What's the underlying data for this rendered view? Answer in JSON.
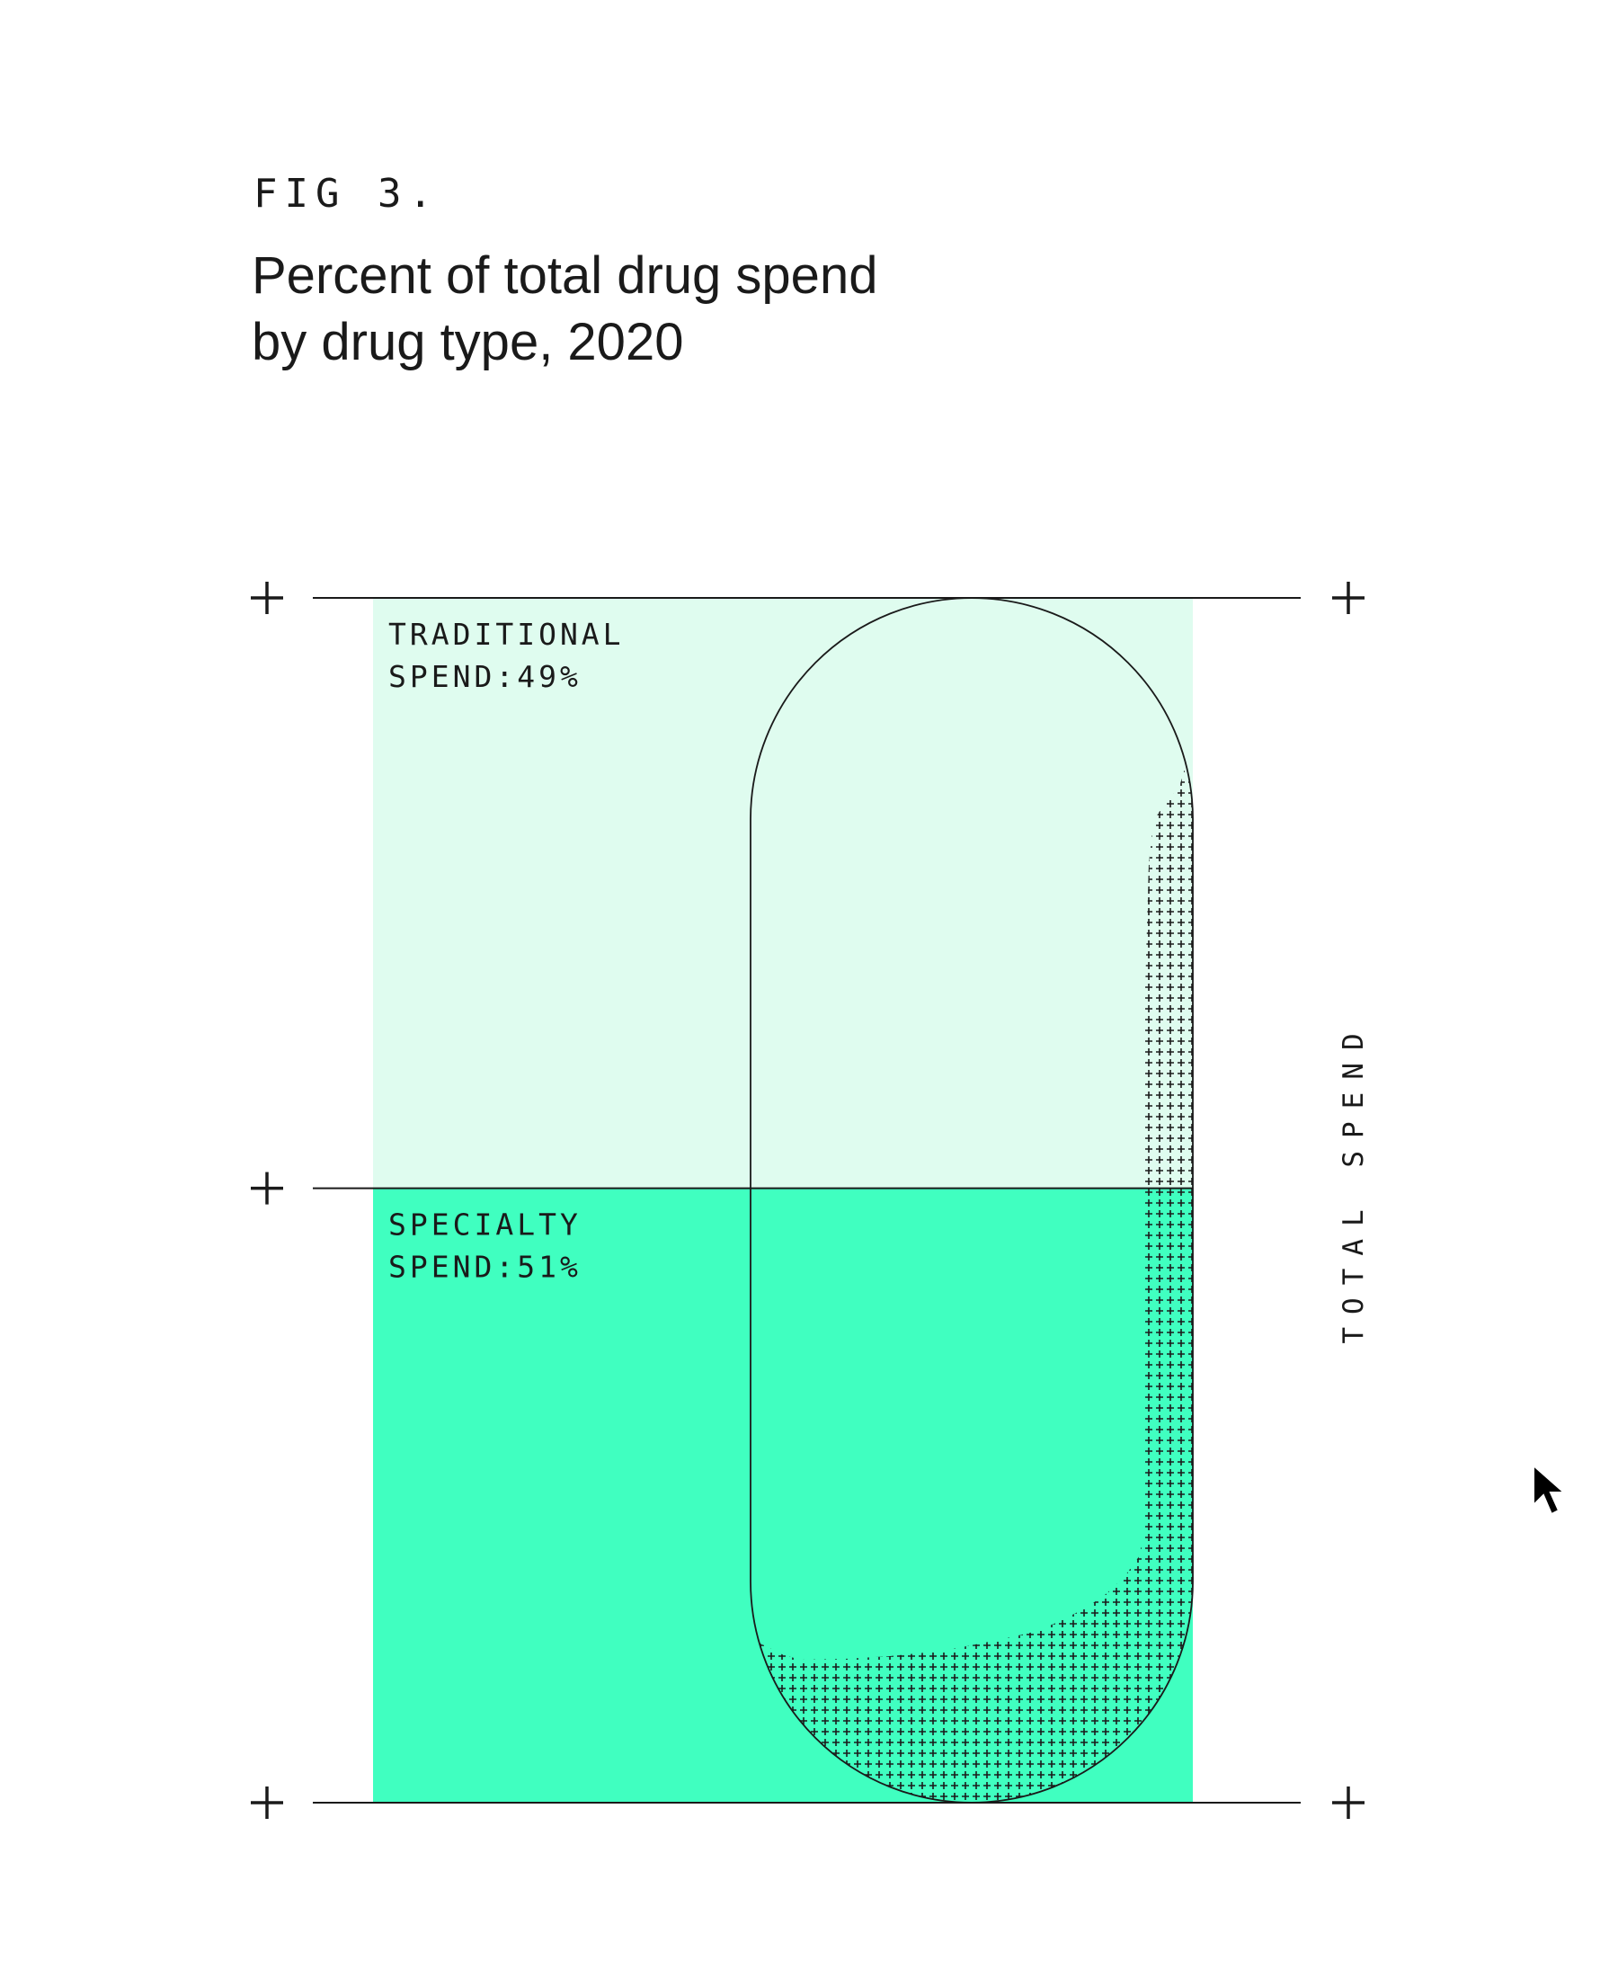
{
  "figure": {
    "label": "FIG 3.",
    "title_lines": [
      "Percent of total drug spend",
      "by drug type, 2020"
    ]
  },
  "chart_data": {
    "type": "bar",
    "stacked": true,
    "categories": [
      "Traditional",
      "Specialty"
    ],
    "series": [
      {
        "name": "TRADITIONAL SPEND",
        "value": 49,
        "label": [
          "TRADITIONAL",
          "SPEND:49%"
        ],
        "color": "#dffcef"
      },
      {
        "name": "SPECIALTY SPEND",
        "value": 51,
        "label": [
          "SPECIALTY",
          "SPEND:51%"
        ],
        "color": "#40ffc0"
      }
    ],
    "axis_label": "TOTAL SPEND",
    "ylim": [
      0,
      100
    ],
    "title": "Percent of total drug spend by drug type, 2020",
    "grid": false,
    "legend": "none"
  },
  "colors": {
    "line": "#1a1a1a",
    "traditional": "#dffcef",
    "specialty": "#40ffc0",
    "pattern": "#1a1a1a"
  },
  "icons": {
    "corner_marker": "plus-icon",
    "cursor": "cursor-arrow-icon"
  }
}
